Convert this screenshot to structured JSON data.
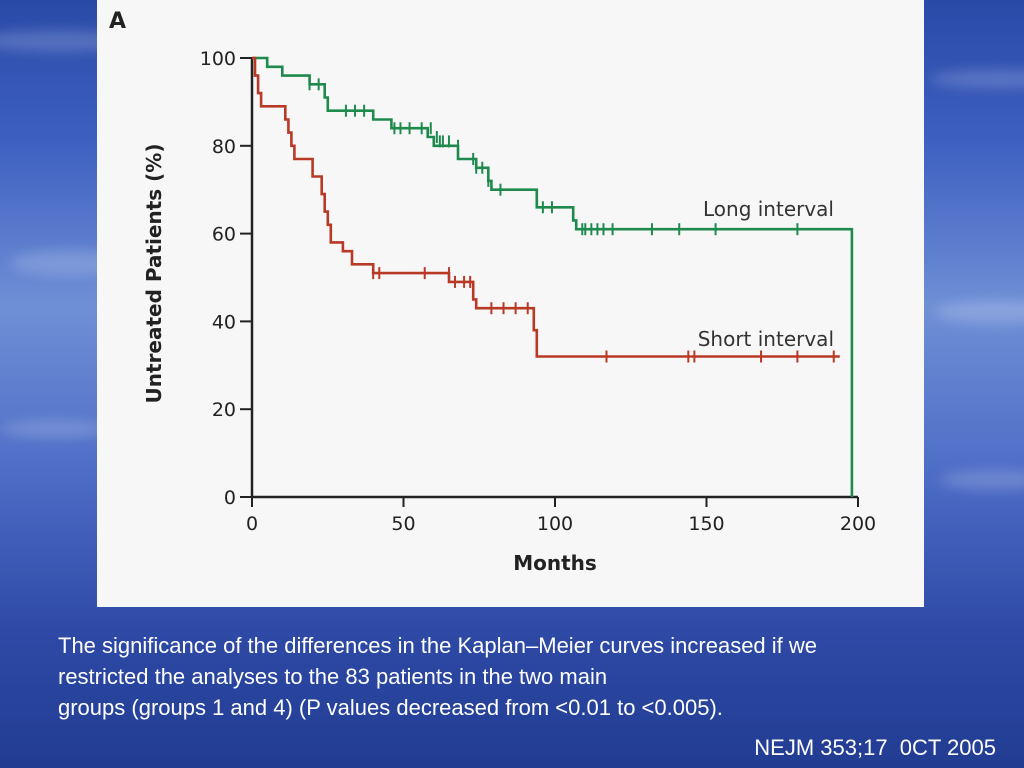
{
  "panel_label": "A",
  "caption_lines": [
    "The significance of the differences in the Kaplan–Meier curves increased if we",
    "restricted the analyses to the 83 patients in the two main",
    "groups (groups 1 and 4) (P values decreased from <0.01 to <0.005)."
  ],
  "citation": "NEJM 353;17  0CT 2005",
  "colors": {
    "long_interval": "#1e8a4e",
    "short_interval": "#b83a26",
    "axis": "#222222"
  },
  "chart_data": {
    "type": "line",
    "title": "",
    "xlabel": "Months",
    "ylabel": "Untreated Patients (%)",
    "xlim": [
      0,
      200
    ],
    "ylim": [
      0,
      100
    ],
    "xticks": [
      0,
      50,
      100,
      150,
      200
    ],
    "yticks": [
      0,
      20,
      40,
      60,
      80,
      100
    ],
    "grid": false,
    "step": true,
    "series": [
      {
        "name": "Long interval",
        "points": [
          [
            0,
            100
          ],
          [
            5,
            100
          ],
          [
            5,
            98
          ],
          [
            10,
            98
          ],
          [
            10,
            96
          ],
          [
            19,
            96
          ],
          [
            19,
            94
          ],
          [
            24,
            94
          ],
          [
            24,
            91
          ],
          [
            25,
            91
          ],
          [
            25,
            88
          ],
          [
            40,
            88
          ],
          [
            40,
            86
          ],
          [
            46,
            86
          ],
          [
            46,
            84
          ],
          [
            58,
            84
          ],
          [
            58,
            82
          ],
          [
            60,
            82
          ],
          [
            60,
            80
          ],
          [
            68,
            80
          ],
          [
            68,
            77
          ],
          [
            74,
            77
          ],
          [
            74,
            75
          ],
          [
            78,
            75
          ],
          [
            78,
            72
          ],
          [
            79,
            72
          ],
          [
            79,
            70
          ],
          [
            94,
            70
          ],
          [
            94,
            66
          ],
          [
            106,
            66
          ],
          [
            106,
            63
          ],
          [
            107,
            63
          ],
          [
            107,
            61
          ],
          [
            198,
            61
          ],
          [
            198,
            0
          ]
        ],
        "censored": [
          [
            19,
            94
          ],
          [
            22,
            94
          ],
          [
            31,
            88
          ],
          [
            34,
            88
          ],
          [
            37,
            88
          ],
          [
            47,
            84
          ],
          [
            49,
            84
          ],
          [
            52,
            84
          ],
          [
            56,
            84
          ],
          [
            59,
            84
          ],
          [
            61,
            82
          ],
          [
            62,
            81
          ],
          [
            63,
            81
          ],
          [
            65,
            81
          ],
          [
            68,
            80
          ],
          [
            73,
            77
          ],
          [
            74,
            75
          ],
          [
            76,
            75
          ],
          [
            78,
            72
          ],
          [
            82,
            70
          ],
          [
            96,
            66
          ],
          [
            99,
            66
          ],
          [
            109,
            61
          ],
          [
            110,
            61
          ],
          [
            112,
            61
          ],
          [
            114,
            61
          ],
          [
            116,
            61
          ],
          [
            119,
            61
          ],
          [
            132,
            61
          ],
          [
            141,
            61
          ],
          [
            153,
            61
          ],
          [
            180,
            61
          ]
        ],
        "end_label": "Long interval"
      },
      {
        "name": "Short interval",
        "points": [
          [
            0,
            100
          ],
          [
            1,
            100
          ],
          [
            1,
            96
          ],
          [
            2,
            96
          ],
          [
            2,
            92
          ],
          [
            3,
            92
          ],
          [
            3,
            89
          ],
          [
            11,
            89
          ],
          [
            11,
            86
          ],
          [
            12,
            86
          ],
          [
            12,
            83
          ],
          [
            13,
            83
          ],
          [
            13,
            80
          ],
          [
            14,
            80
          ],
          [
            14,
            77
          ],
          [
            20,
            77
          ],
          [
            20,
            73
          ],
          [
            23,
            73
          ],
          [
            23,
            69
          ],
          [
            24,
            69
          ],
          [
            24,
            65
          ],
          [
            25,
            65
          ],
          [
            25,
            62
          ],
          [
            26,
            62
          ],
          [
            26,
            58
          ],
          [
            30,
            58
          ],
          [
            30,
            56
          ],
          [
            33,
            56
          ],
          [
            33,
            53
          ],
          [
            40,
            53
          ],
          [
            40,
            51
          ],
          [
            65,
            51
          ],
          [
            65,
            49
          ],
          [
            73,
            49
          ],
          [
            73,
            45
          ],
          [
            74,
            45
          ],
          [
            74,
            43
          ],
          [
            93,
            43
          ],
          [
            93,
            38
          ],
          [
            94,
            38
          ],
          [
            94,
            32
          ],
          [
            194,
            32
          ]
        ],
        "censored": [
          [
            40,
            51
          ],
          [
            42,
            51
          ],
          [
            57,
            51
          ],
          [
            65,
            51
          ],
          [
            67,
            49
          ],
          [
            70,
            49
          ],
          [
            72,
            49
          ],
          [
            79,
            43
          ],
          [
            83,
            43
          ],
          [
            87,
            43
          ],
          [
            91,
            43
          ],
          [
            117,
            32
          ],
          [
            144,
            32
          ],
          [
            146,
            32
          ],
          [
            168,
            32
          ],
          [
            180,
            32
          ],
          [
            192,
            32
          ]
        ],
        "end_label": "Short interval"
      }
    ]
  }
}
